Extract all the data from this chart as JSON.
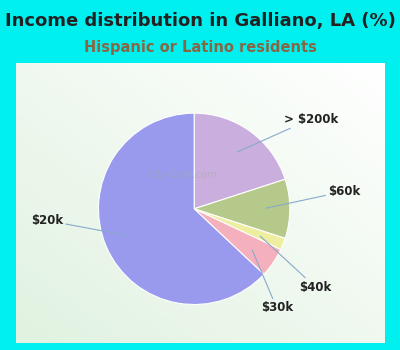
{
  "title": "Income distribution in Galliano, LA (%)",
  "subtitle": "Hispanic or Latino residents",
  "slices": [
    {
      "label": "> $200k",
      "value": 20,
      "color": "#c9aede"
    },
    {
      "label": "$60k",
      "value": 10,
      "color": "#b5c98a"
    },
    {
      "label": "$40k",
      "value": 2,
      "color": "#eeeea0"
    },
    {
      "label": "$30k",
      "value": 5,
      "color": "#f4b0bc"
    },
    {
      "label": "$20k",
      "value": 63,
      "color": "#9999ee"
    }
  ],
  "background_color": "#00f0f0",
  "title_color": "#222222",
  "subtitle_color": "#886644",
  "label_fontsize": 8.5,
  "title_fontsize": 13,
  "subtitle_fontsize": 10.5,
  "watermark": "City-Data.com"
}
